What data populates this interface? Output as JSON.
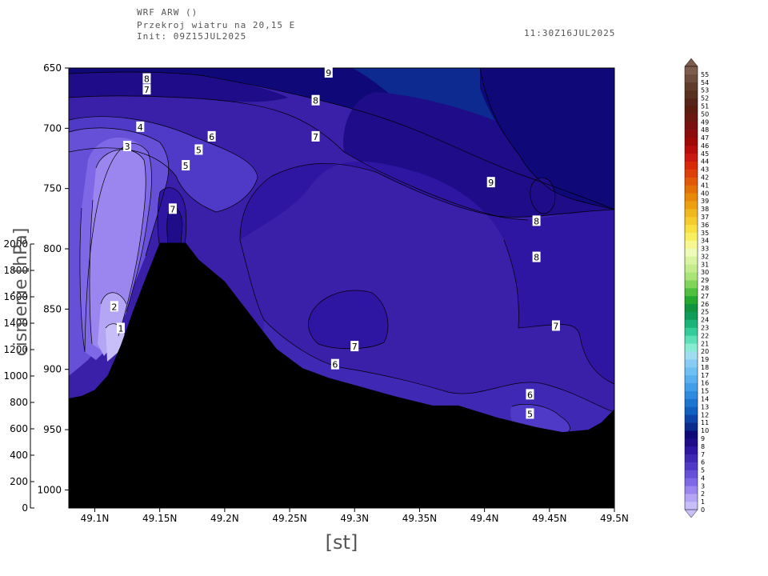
{
  "header": {
    "model": "WRF ARW ()",
    "section": "Przekroj wiatru na 20,15 E",
    "init": "Init: 09Z15JUL2025",
    "valid": "11:30Z16JUL2025"
  },
  "chart_data": {
    "type": "contour",
    "xlabel": "[st]",
    "ylabel_left": "cisnienie [hPa]",
    "x_ticks": [
      "49.1N",
      "49.15N",
      "49.2N",
      "49.25N",
      "49.3N",
      "49.35N",
      "49.4N",
      "49.45N",
      "49.5N"
    ],
    "x_tick_values": [
      49.1,
      49.15,
      49.2,
      49.25,
      49.3,
      49.35,
      49.4,
      49.45,
      49.5
    ],
    "xlim": [
      49.08,
      49.5
    ],
    "pressure_ticks": [
      "650",
      "700",
      "750",
      "800",
      "850",
      "900",
      "950",
      "1000"
    ],
    "pressure_values": [
      650,
      700,
      750,
      800,
      850,
      900,
      950,
      1000
    ],
    "ylim_pressure": [
      650,
      1015
    ],
    "height_ticks": [
      "0",
      "200",
      "400",
      "600",
      "800",
      "1000",
      "1200",
      "1400",
      "1600",
      "1800",
      "2000"
    ],
    "height_values": [
      0,
      200,
      400,
      600,
      800,
      1000,
      1200,
      1400,
      1600,
      1800,
      2000
    ],
    "contour_labels": [
      {
        "text": "9",
        "lat": 49.28,
        "p": 654
      },
      {
        "text": "8",
        "lat": 49.14,
        "p": 659
      },
      {
        "text": "7",
        "lat": 49.14,
        "p": 668
      },
      {
        "text": "8",
        "lat": 49.27,
        "p": 677
      },
      {
        "text": "4",
        "lat": 49.135,
        "p": 699
      },
      {
        "text": "6",
        "lat": 49.19,
        "p": 707
      },
      {
        "text": "7",
        "lat": 49.27,
        "p": 707
      },
      {
        "text": "3",
        "lat": 49.125,
        "p": 715
      },
      {
        "text": "5",
        "lat": 49.18,
        "p": 718
      },
      {
        "text": "5",
        "lat": 49.17,
        "p": 731
      },
      {
        "text": "9",
        "lat": 49.405,
        "p": 745
      },
      {
        "text": "7",
        "lat": 49.16,
        "p": 767
      },
      {
        "text": "8",
        "lat": 49.44,
        "p": 777
      },
      {
        "text": "8",
        "lat": 49.44,
        "p": 807
      },
      {
        "text": "2",
        "lat": 49.115,
        "p": 848
      },
      {
        "text": "7",
        "lat": 49.455,
        "p": 864
      },
      {
        "text": "1",
        "lat": 49.12,
        "p": 866
      },
      {
        "text": "7",
        "lat": 49.3,
        "p": 881
      },
      {
        "text": "6",
        "lat": 49.285,
        "p": 896
      },
      {
        "text": "6",
        "lat": 49.435,
        "p": 921
      },
      {
        "text": "5",
        "lat": 49.435,
        "p": 937
      }
    ],
    "terrain_profile_p": [
      [
        49.08,
        924
      ],
      [
        49.09,
        922
      ],
      [
        49.1,
        917
      ],
      [
        49.11,
        905
      ],
      [
        49.12,
        880
      ],
      [
        49.13,
        850
      ],
      [
        49.14,
        822
      ],
      [
        49.15,
        795
      ],
      [
        49.16,
        795
      ],
      [
        49.17,
        795
      ],
      [
        49.18,
        809
      ],
      [
        49.2,
        827
      ],
      [
        49.22,
        855
      ],
      [
        49.24,
        883
      ],
      [
        49.26,
        899
      ],
      [
        49.28,
        907
      ],
      [
        49.3,
        913
      ],
      [
        49.33,
        922
      ],
      [
        49.36,
        930
      ],
      [
        49.38,
        930
      ],
      [
        49.41,
        940
      ],
      [
        49.44,
        948
      ],
      [
        49.46,
        952
      ],
      [
        49.48,
        950
      ],
      [
        49.49,
        944
      ],
      [
        49.5,
        933
      ]
    ],
    "colorbar": {
      "levels": [
        "0",
        "1",
        "2",
        "3",
        "4",
        "5",
        "6",
        "7",
        "8",
        "9",
        "10",
        "11",
        "12",
        "13",
        "14",
        "15",
        "16",
        "17",
        "18",
        "19",
        "20",
        "21",
        "22",
        "23",
        "24",
        "25",
        "26",
        "27",
        "28",
        "29",
        "30",
        "31",
        "32",
        "33",
        "34",
        "35",
        "36",
        "37",
        "38",
        "39",
        "40",
        "41",
        "42",
        "43",
        "44",
        "45",
        "46",
        "47",
        "48",
        "49",
        "50",
        "51",
        "52",
        "53",
        "54",
        "55"
      ],
      "colors": [
        "#c8bef8",
        "#b4a6f4",
        "#9a86ee",
        "#7f68e6",
        "#6650d8",
        "#4f3ac8",
        "#3f28b4",
        "#2f16a2",
        "#1e0c88",
        "#0e0878",
        "#0a2a8c",
        "#0c44a8",
        "#1060c0",
        "#1c76d0",
        "#2e8ce0",
        "#429ee8",
        "#58b0ee",
        "#6ec0f2",
        "#88ccf4",
        "#a0dcf0",
        "#88ecd4",
        "#5ce0b8",
        "#34cc98",
        "#1cb478",
        "#0e9c58",
        "#109440",
        "#24a830",
        "#50c040",
        "#80d458",
        "#a8e478",
        "#c4ec8c",
        "#d8f4a0",
        "#eefab8",
        "#f8f890",
        "#f8f060",
        "#f8e040",
        "#f4cc30",
        "#f0b820",
        "#eca010",
        "#e88808",
        "#e47008",
        "#e05808",
        "#dc4008",
        "#d82808",
        "#c81810",
        "#b80c0c",
        "#a00808",
        "#8c0c0c",
        "#7a1010",
        "#6a1810",
        "#5c1c10",
        "#562418",
        "#583020",
        "#603c2c",
        "#6c4c3c",
        "#7c5c4c"
      ]
    }
  }
}
